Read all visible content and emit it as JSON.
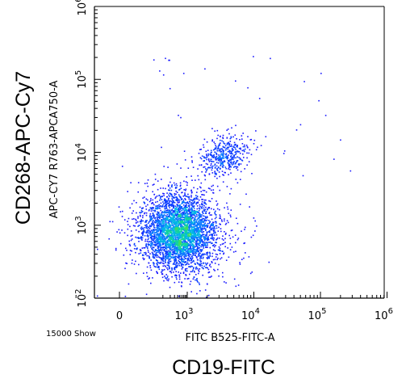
{
  "chart_data": {
    "type": "scatter",
    "style": "density-dot-plot",
    "x_scale": "biexponential",
    "y_scale": "log",
    "xlabel": "FITC B525-FITC-A",
    "ylabel": "APC-CY7 R763-APCA750-A",
    "outer_xlabel": "CD19-FITC",
    "outer_ylabel": "CD268-APC-Cy7",
    "event_count_label": "15000 Show",
    "xlim": [
      -200,
      1000000
    ],
    "ylim": [
      100,
      1000000
    ],
    "x_ticks": [
      {
        "value": 0,
        "base": "0",
        "exp": ""
      },
      {
        "value": 1000,
        "base": "10",
        "exp": "3"
      },
      {
        "value": 10000,
        "base": "10",
        "exp": "4"
      },
      {
        "value": 100000,
        "base": "10",
        "exp": "5"
      },
      {
        "value": 1000000,
        "base": "10",
        "exp": "6"
      }
    ],
    "y_ticks": [
      {
        "value": 100,
        "base": "10",
        "exp": "2"
      },
      {
        "value": 1000,
        "base": "10",
        "exp": "3"
      },
      {
        "value": 10000,
        "base": "10",
        "exp": "4"
      },
      {
        "value": 100000,
        "base": "10",
        "exp": "5"
      },
      {
        "value": 1000000,
        "base": "10",
        "exp": "6"
      }
    ],
    "populations": [
      {
        "center_x": 450,
        "center_y": 800,
        "approx_fraction": 0.9
      },
      {
        "center_x": 3500,
        "center_y": 9000,
        "approx_fraction": 0.1
      }
    ],
    "colormap": [
      "#1a1aff",
      "#0a3cff",
      "#0a78ff",
      "#00b4e6",
      "#12d2a0",
      "#3cdc64"
    ],
    "grid": false
  }
}
